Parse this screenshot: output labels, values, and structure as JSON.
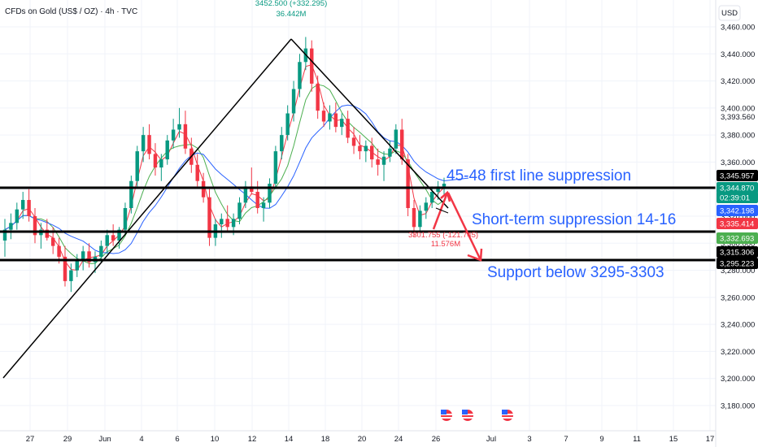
{
  "header": {
    "symbol": "CFDs on Gold (US$ / OZ) · 4h · TVC",
    "currency": "USD"
  },
  "colors": {
    "up": "#089981",
    "down": "#f23645",
    "annotation": "#2962ff",
    "ma_fast": "#f23645",
    "ma_mid": "#4caf50",
    "ma_slow": "#2962ff",
    "level_line": "#000000"
  },
  "chart_data": {
    "type": "candlestick",
    "y_axis": {
      "min": 3170,
      "max": 3465,
      "ticks": [
        "3,460.000",
        "3,440.000",
        "3,420.000",
        "3,400.000",
        "3,380.000",
        "3,360.000",
        "3,340.000",
        "3,320.000",
        "3,300.000",
        "3,280.000",
        "3,260.000",
        "3,240.000",
        "3,220.000",
        "3,200.000",
        "3,180.000"
      ],
      "tick_values": [
        3460,
        3440,
        3420,
        3400,
        3380,
        3360,
        3340,
        3320,
        3300,
        3280,
        3260,
        3240,
        3220,
        3200,
        3180
      ]
    },
    "x_axis": {
      "min": 25.5,
      "max": 49,
      "labels": [
        "27",
        "29",
        "Jun",
        "4",
        "6",
        "10",
        "12",
        "14",
        "18",
        "20",
        "24",
        "26",
        "Jul",
        "3",
        "7",
        "9",
        "11",
        "15",
        "17"
      ],
      "label_positions": [
        27,
        29,
        31,
        34,
        36,
        40,
        42,
        44,
        46,
        48,
        50,
        52,
        54,
        56,
        58,
        60,
        62,
        64,
        66
      ]
    },
    "candles_ohlc": [
      [
        3302,
        3318,
        3290,
        3310
      ],
      [
        3310,
        3322,
        3303,
        3315
      ],
      [
        3315,
        3330,
        3310,
        3325
      ],
      [
        3325,
        3338,
        3318,
        3332
      ],
      [
        3332,
        3340,
        3316,
        3320
      ],
      [
        3320,
        3326,
        3300,
        3306
      ],
      [
        3306,
        3315,
        3296,
        3310
      ],
      [
        3310,
        3318,
        3302,
        3304
      ],
      [
        3304,
        3312,
        3292,
        3298
      ],
      [
        3298,
        3304,
        3285,
        3290
      ],
      [
        3290,
        3298,
        3268,
        3272
      ],
      [
        3272,
        3285,
        3264,
        3280
      ],
      [
        3280,
        3292,
        3275,
        3288
      ],
      [
        3288,
        3298,
        3280,
        3294
      ],
      [
        3294,
        3300,
        3282,
        3286
      ],
      [
        3286,
        3294,
        3278,
        3290
      ],
      [
        3290,
        3302,
        3286,
        3298
      ],
      [
        3298,
        3310,
        3292,
        3306
      ],
      [
        3306,
        3314,
        3298,
        3302
      ],
      [
        3302,
        3312,
        3296,
        3310
      ],
      [
        3310,
        3330,
        3306,
        3326
      ],
      [
        3326,
        3350,
        3322,
        3346
      ],
      [
        3346,
        3372,
        3342,
        3368
      ],
      [
        3368,
        3386,
        3360,
        3380
      ],
      [
        3380,
        3388,
        3362,
        3366
      ],
      [
        3366,
        3374,
        3350,
        3356
      ],
      [
        3356,
        3366,
        3346,
        3362
      ],
      [
        3362,
        3380,
        3358,
        3376
      ],
      [
        3376,
        3392,
        3370,
        3384
      ],
      [
        3384,
        3400,
        3378,
        3388
      ],
      [
        3388,
        3398,
        3366,
        3370
      ],
      [
        3370,
        3378,
        3352,
        3358
      ],
      [
        3358,
        3366,
        3342,
        3346
      ],
      [
        3346,
        3352,
        3330,
        3334
      ],
      [
        3334,
        3340,
        3298,
        3304
      ],
      [
        3304,
        3318,
        3298,
        3314
      ],
      [
        3314,
        3322,
        3304,
        3318
      ],
      [
        3318,
        3328,
        3308,
        3312
      ],
      [
        3312,
        3322,
        3306,
        3318
      ],
      [
        3318,
        3334,
        3314,
        3330
      ],
      [
        3330,
        3346,
        3326,
        3342
      ],
      [
        3342,
        3356,
        3336,
        3338
      ],
      [
        3338,
        3346,
        3322,
        3326
      ],
      [
        3326,
        3334,
        3316,
        3330
      ],
      [
        3330,
        3348,
        3326,
        3344
      ],
      [
        3344,
        3372,
        3340,
        3368
      ],
      [
        3368,
        3386,
        3362,
        3380
      ],
      [
        3380,
        3402,
        3376,
        3396
      ],
      [
        3396,
        3420,
        3390,
        3414
      ],
      [
        3414,
        3440,
        3408,
        3434
      ],
      [
        3434,
        3452.5,
        3428,
        3444
      ],
      [
        3444,
        3450,
        3412,
        3418
      ],
      [
        3418,
        3424,
        3392,
        3398
      ],
      [
        3398,
        3404,
        3386,
        3390
      ],
      [
        3390,
        3402,
        3384,
        3396
      ],
      [
        3396,
        3404,
        3382,
        3386
      ],
      [
        3386,
        3396,
        3380,
        3392
      ],
      [
        3392,
        3398,
        3374,
        3378
      ],
      [
        3378,
        3386,
        3366,
        3372
      ],
      [
        3372,
        3380,
        3362,
        3368
      ],
      [
        3368,
        3376,
        3360,
        3372
      ],
      [
        3372,
        3378,
        3356,
        3362
      ],
      [
        3362,
        3370,
        3350,
        3358
      ],
      [
        3358,
        3368,
        3346,
        3364
      ],
      [
        3364,
        3376,
        3360,
        3370
      ],
      [
        3370,
        3388,
        3366,
        3384
      ],
      [
        3384,
        3392,
        3358,
        3362
      ],
      [
        3362,
        3366,
        3320,
        3326
      ],
      [
        3326,
        3332,
        3305,
        3312
      ],
      [
        3312,
        3328,
        3308,
        3324
      ],
      [
        3324,
        3334,
        3318,
        3330
      ],
      [
        3330,
        3342,
        3326,
        3338
      ],
      [
        3338,
        3346,
        3332,
        3342
      ],
      [
        3342,
        3348.5,
        3336,
        3344
      ]
    ],
    "peak_annotation": {
      "text": "3452.500 (+332.295)",
      "volume": "36.442M",
      "value": 3452.5
    },
    "low_annotation": {
      "text": "3301.755 (-121.745)",
      "volume": "11.576M",
      "value": 3301.755
    },
    "horizontal_levels": [
      3345.957,
      3315.306,
      3295.223
    ],
    "price_badges": [
      {
        "text": "3,345.957",
        "value": 3345.957,
        "color": "#000000"
      },
      {
        "text": "3,344.870",
        "value": 3344.87,
        "color": "#089981"
      },
      {
        "text": "02:39:01",
        "value": 3340.7,
        "color": "#089981"
      },
      {
        "text": "3,342.198",
        "value": 3342.198,
        "color": "#2962ff"
      },
      {
        "text": "3,335.414",
        "value": 3335.414,
        "color": "#f23645"
      },
      {
        "text": "3,332.693",
        "value": 3332.693,
        "color": "#4caf50"
      },
      {
        "text": "3,315.306",
        "value": 3315.306,
        "color": "#000000"
      },
      {
        "text": "3,295.223",
        "value": 3295.223,
        "color": "#000000"
      }
    ],
    "axis_marker": {
      "text": "3,393.560",
      "value": 3393.56
    },
    "annotations": [
      "45-48 first line suppression",
      "Short-term suppression 14-16",
      "Support below 3295-3303"
    ]
  }
}
